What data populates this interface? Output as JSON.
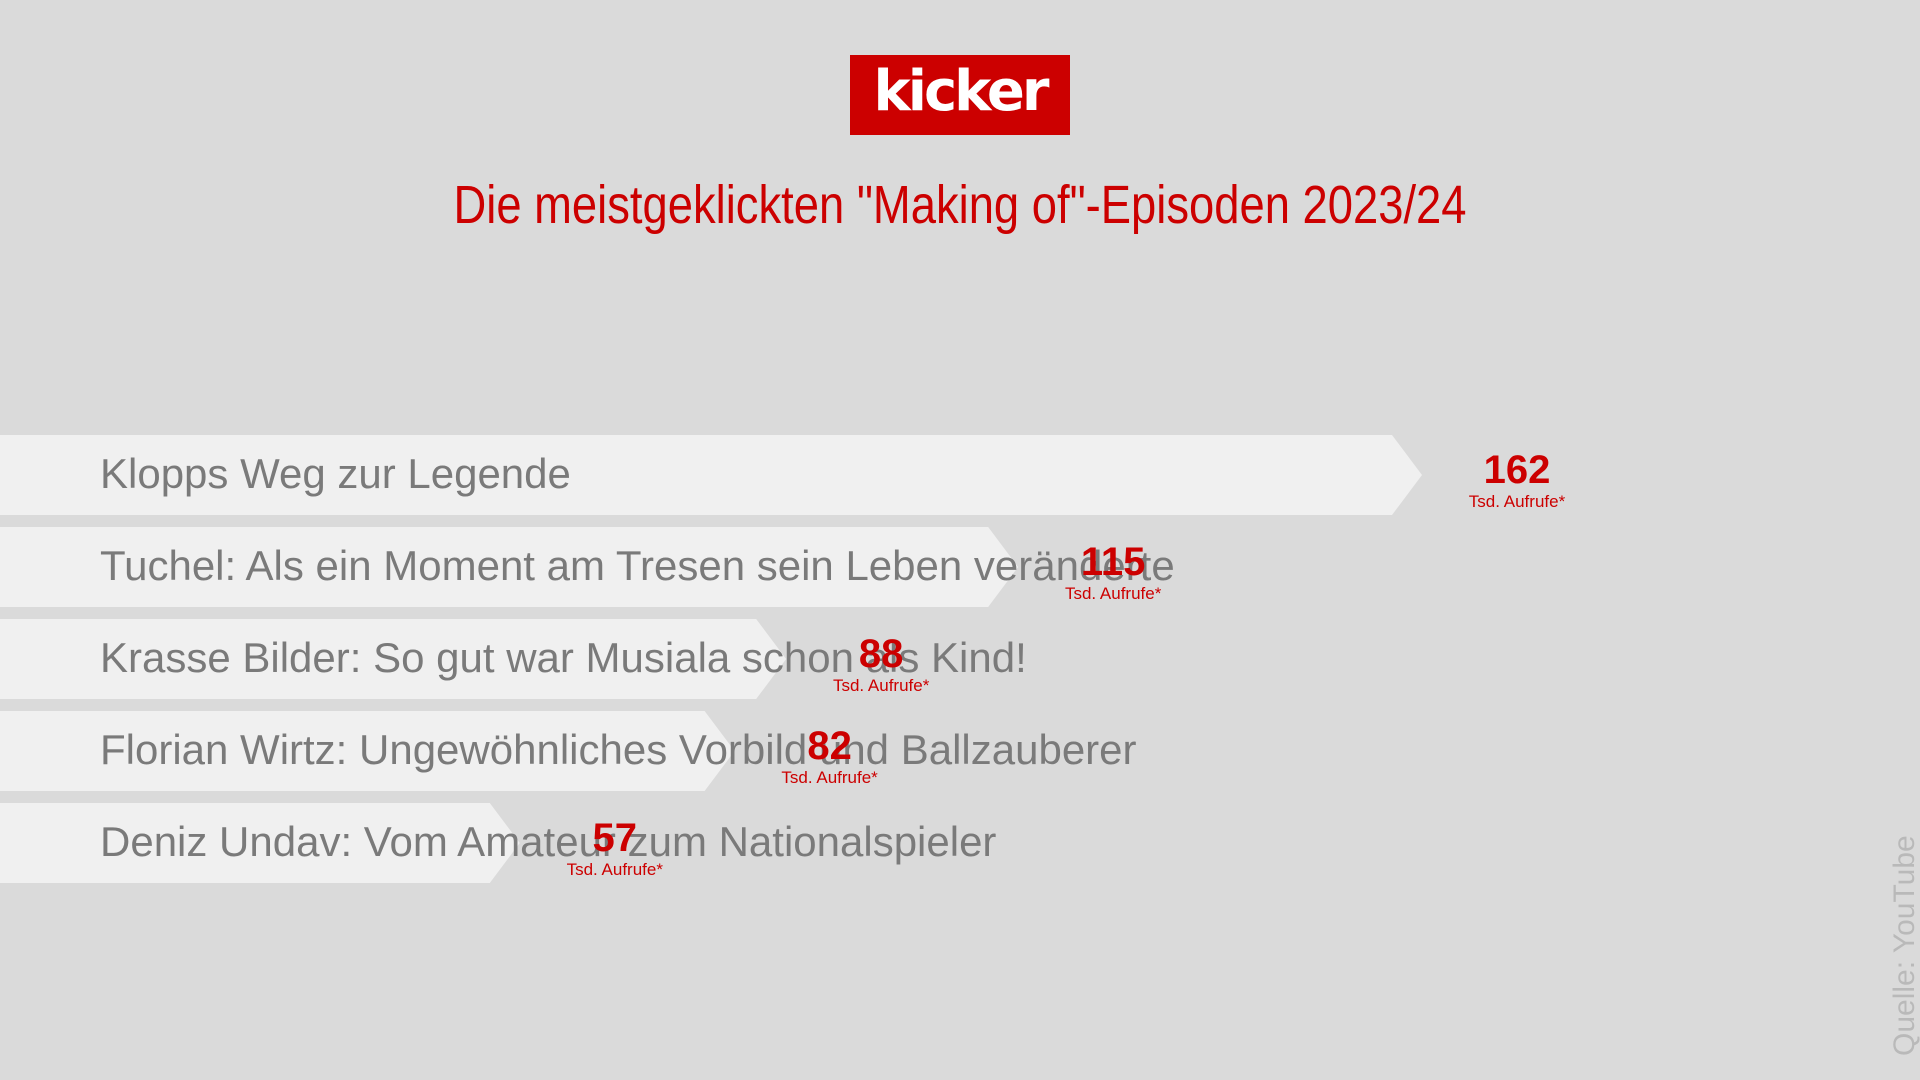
{
  "brand": {
    "logo_text": "kicker",
    "colors": {
      "accent": "#cc0000",
      "background": "#dadada",
      "bar": "#f0f0f0",
      "bar_text": "#7a7a7a",
      "source_text": "#b9b9b9"
    }
  },
  "header": {
    "title": "Die meistgeklickten \"Making of\"-Episoden 2023/24"
  },
  "footer": {
    "source": "Quelle: YouTube"
  },
  "chart_data": {
    "type": "bar",
    "orientation": "horizontal",
    "title": "Die meistgeklickten \"Making of\"-Episoden 2023/24",
    "categories": [
      "Klopps Weg zur Legende",
      "Tuchel: Als ein Moment am Tresen sein Leben veränderte",
      "Krasse Bilder: So gut war Musiala schon als Kind!",
      "Florian Wirtz: Ungewöhnliches Vorbild und Ballzauberer",
      "Deniz Undav: Vom Amateur zum Nationalspieler"
    ],
    "values": [
      162,
      115,
      88,
      82,
      57
    ],
    "value_unit": "Tsd. Aufrufe*",
    "value_labels": [
      "162",
      "115",
      "88",
      "82",
      "57"
    ],
    "grid": false,
    "legend": "none"
  }
}
